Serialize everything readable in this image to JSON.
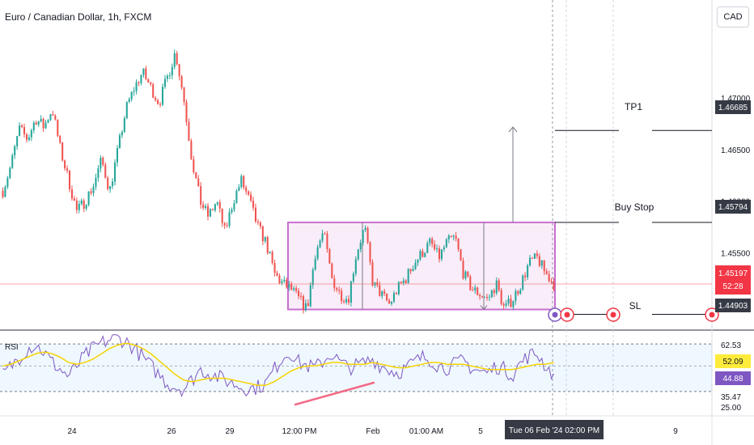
{
  "title": "Euro / Canadian Dollar, 1h, FXCM",
  "currency_label": "CAD",
  "colors": {
    "up": "#26a69a",
    "down": "#ef5350",
    "box": "#c86fd0",
    "rsi_line": "#7e57c2",
    "rsi_ma": "#f5d300",
    "trend": "#f36a86",
    "tag_dark": "#363a45",
    "tag_red": "#f23645",
    "tag_yellow": "#ffeb3b",
    "tag_purple": "#7e57c2"
  },
  "annotations": {
    "tp1": {
      "label": "TP1",
      "price": 1.46685,
      "price_label": "1.46685"
    },
    "buy_stop": {
      "label": "Buy Stop",
      "price": 1.45794,
      "price_label": "1.45794"
    },
    "sl": {
      "label": "SL",
      "price": 1.44903,
      "price_label": "1.44903"
    },
    "current": {
      "price": 1.45197,
      "price_label": "1.45197",
      "countdown": "52:28"
    }
  },
  "crosshair_time_label": "Tue 06 Feb '24  02:00 PM",
  "chart_data": {
    "type": "candlestick",
    "title": "Euro / Canadian Dollar, 1h, FXCM",
    "price_axis": {
      "ticks": [
        "1.47000",
        "1.46500",
        "1.46000",
        "1.45500"
      ],
      "ylim": [
        1.4475,
        1.4795
      ]
    },
    "x_ticks": [
      "24",
      "26",
      "29",
      "12:00 PM",
      "Feb",
      "01:00 AM",
      "5",
      "9"
    ],
    "price_path": [
      1.461,
      1.4635,
      1.467,
      1.466,
      1.468,
      1.4672,
      1.469,
      1.465,
      1.462,
      1.459,
      1.46,
      1.4615,
      1.464,
      1.461,
      1.465,
      1.469,
      1.471,
      1.4725,
      1.471,
      1.4695,
      1.472,
      1.4745,
      1.47,
      1.464,
      1.46,
      1.4585,
      1.46,
      1.457,
      1.46,
      1.462,
      1.46,
      1.4575,
      1.456,
      1.453,
      1.452,
      1.4515,
      1.4505,
      1.4495,
      1.455,
      1.457,
      1.4525,
      1.451,
      1.4505,
      1.455,
      1.4575,
      1.452,
      1.451,
      1.45,
      1.4515,
      1.4525,
      1.454,
      1.455,
      1.456,
      1.4545,
      1.456,
      1.4565,
      1.453,
      1.4515,
      1.451,
      1.4505,
      1.452,
      1.4495,
      1.4505,
      1.452,
      1.454,
      1.4545,
      1.453,
      1.452
    ],
    "box": {
      "top": 1.45794,
      "bottom": 1.44903
    },
    "rsi": {
      "label": "RSI",
      "levels": [
        "62.53",
        "35.47",
        "25.00"
      ],
      "ylim": [
        22,
        70
      ],
      "value": 44.88,
      "value_label": "44.88",
      "ma_value": 52.09,
      "ma_label": "52.09",
      "line": [
        45,
        50,
        55,
        60,
        62,
        58,
        52,
        48,
        44,
        50,
        56,
        60,
        63,
        65,
        66,
        64,
        60,
        55,
        50,
        45,
        40,
        38,
        37,
        42,
        48,
        46,
        44,
        42,
        40,
        38,
        37,
        38,
        40,
        48,
        55,
        58,
        52,
        50,
        49,
        53,
        57,
        52,
        49,
        50,
        52,
        54,
        50,
        48,
        46,
        49,
        52,
        55,
        54,
        50,
        49,
        51,
        53,
        49,
        47,
        46,
        50,
        48,
        45,
        52,
        56,
        57,
        50,
        45
      ],
      "ma": [
        50,
        51,
        53,
        55,
        57,
        58,
        57,
        55,
        52,
        51,
        52,
        54,
        57,
        60,
        62,
        63,
        62,
        60,
        57,
        53,
        49,
        45,
        42,
        41,
        42,
        43,
        43,
        43,
        42,
        41,
        40,
        39,
        39,
        41,
        44,
        47,
        49,
        50,
        50,
        51,
        52,
        52,
        51,
        51,
        51,
        52,
        51,
        50,
        49,
        49,
        50,
        51,
        52,
        52,
        51,
        51,
        51,
        50,
        49,
        48,
        48,
        48,
        48,
        49,
        50,
        51,
        51,
        52
      ]
    }
  }
}
